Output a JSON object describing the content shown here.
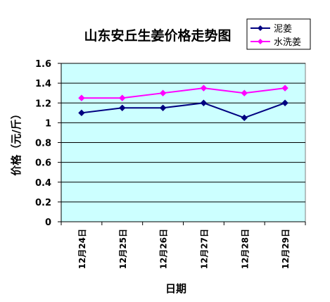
{
  "chart_data": {
    "type": "line",
    "title": "山东安丘生姜价格走势图",
    "xlabel": "日期",
    "ylabel": "价格（元/斤）",
    "categories": [
      "12月24日",
      "12月25日",
      "12月26日",
      "12月27日",
      "12月28日",
      "12月29日"
    ],
    "yticks": [
      "0",
      "0.2",
      "0.4",
      "0.6",
      "0.8",
      "1",
      "1.2",
      "1.4",
      "1.6"
    ],
    "ylim": [
      0,
      1.6
    ],
    "grid": true,
    "legend_position": "top-right",
    "plot_background": "#CCFFFF",
    "series": [
      {
        "name": "泥姜",
        "color": "#000080",
        "marker": "diamond",
        "values": [
          1.1,
          1.15,
          1.15,
          1.2,
          1.05,
          1.2
        ]
      },
      {
        "name": "水洗姜",
        "color": "#FF00FF",
        "marker": "diamond",
        "values": [
          1.25,
          1.25,
          1.3,
          1.35,
          1.3,
          1.35
        ]
      }
    ]
  }
}
